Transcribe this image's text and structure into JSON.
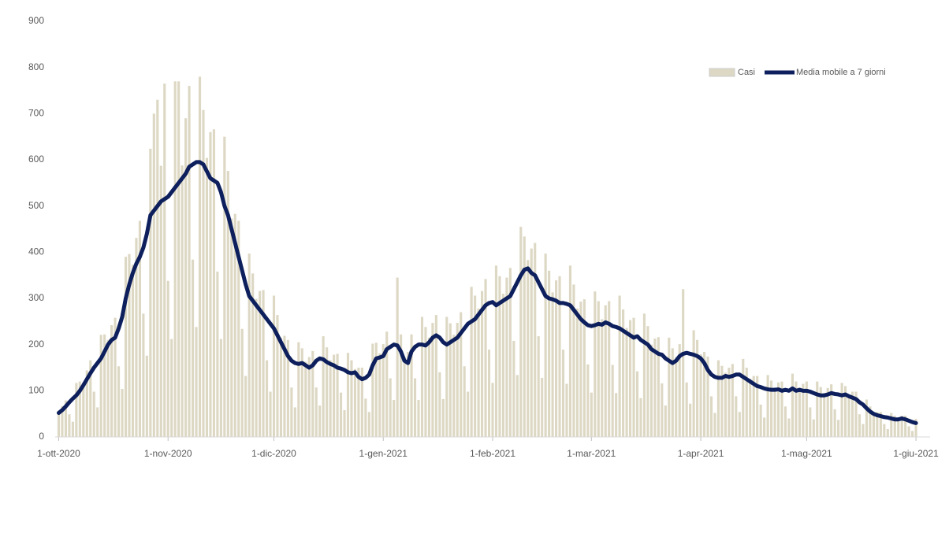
{
  "chart_data": {
    "type": "bar",
    "x": [
      0,
      1,
      2,
      3,
      4,
      5,
      6,
      7,
      8,
      9,
      10,
      11,
      12,
      13,
      14,
      15,
      16,
      17,
      18,
      19,
      20,
      21,
      22,
      23,
      24,
      25,
      26,
      27,
      28,
      29,
      30,
      31,
      32,
      33,
      34,
      35,
      36,
      37,
      38,
      39,
      40,
      41,
      42,
      43,
      44,
      45,
      46,
      47,
      48,
      49,
      50,
      51,
      52,
      53,
      54,
      55,
      56,
      57,
      58,
      59,
      60,
      61,
      62,
      63,
      64,
      65,
      66,
      67,
      68,
      69,
      70,
      71,
      72,
      73,
      74,
      75,
      76,
      77,
      78,
      79,
      80,
      81,
      82,
      83,
      84,
      85,
      86,
      87,
      88,
      89,
      90,
      91,
      92,
      93,
      94,
      95,
      96,
      97,
      98,
      99,
      100,
      101,
      102,
      103,
      104,
      105,
      106,
      107,
      108,
      109,
      110,
      111,
      112,
      113,
      114,
      115,
      116,
      117,
      118,
      119,
      120,
      121,
      122,
      123,
      124,
      125,
      126,
      127,
      128,
      129,
      130,
      131,
      132,
      133,
      134,
      135,
      136,
      137,
      138,
      139,
      140,
      141,
      142,
      143,
      144,
      145,
      146,
      147,
      148,
      149,
      150,
      151,
      152,
      153,
      154,
      155,
      156,
      157,
      158,
      159,
      160,
      161,
      162,
      163,
      164,
      165,
      166,
      167,
      168,
      169,
      170,
      171,
      172,
      173,
      174,
      175,
      176,
      177,
      178,
      179,
      180,
      181,
      182,
      183,
      184,
      185,
      186,
      187,
      188,
      189,
      190,
      191,
      192,
      193,
      194,
      195,
      196,
      197,
      198,
      199,
      200,
      201,
      202,
      203,
      204,
      205,
      206,
      207,
      208,
      209,
      210,
      211,
      212,
      213,
      214,
      215,
      216,
      217,
      218,
      219,
      220,
      221,
      222,
      223,
      224,
      225,
      226,
      227,
      228,
      229,
      230,
      231,
      232,
      233,
      234,
      235,
      236,
      237,
      238,
      239,
      240,
      241,
      242,
      243
    ],
    "series": [
      {
        "name": "Casi",
        "type": "bar",
        "color": "#ddd8c4",
        "values": [
          55,
          67,
          79,
          49,
          33,
          117,
          120,
          118,
          144,
          166,
          98,
          64,
          221,
          222,
          210,
          242,
          258,
          153,
          104,
          390,
          396,
          373,
          431,
          468,
          267,
          176,
          624,
          700,
          730,
          587,
          765,
          338,
          212,
          770,
          770,
          588,
          690,
          760,
          384,
          238,
          780,
          708,
          604,
          660,
          666,
          358,
          212,
          650,
          576,
          473,
          483,
          468,
          234,
          132,
          397,
          354,
          299,
          316,
          318,
          166,
          98,
          306,
          264,
          215,
          219,
          210,
          107,
          64,
          205,
          192,
          163,
          173,
          186,
          107,
          68,
          218,
          194,
          166,
          178,
          180,
          96,
          58,
          182,
          166,
          147,
          150,
          150,
          83,
          54,
          202,
          204,
          181,
          201,
          228,
          127,
          80,
          345,
          222,
          173,
          184,
          222,
          127,
          80,
          260,
          238,
          215,
          247,
          264,
          140,
          82,
          260,
          246,
          221,
          247,
          270,
          153,
          98,
          325,
          306,
          278,
          316,
          342,
          189,
          117,
          371,
          348,
          310,
          345,
          366,
          208,
          134,
          455,
          434,
          383,
          408,
          420,
          218,
          128,
          397,
          360,
          313,
          339,
          348,
          189,
          115,
          371,
          330,
          278,
          293,
          298,
          157,
          96,
          315,
          294,
          255,
          285,
          294,
          156,
          95,
          306,
          276,
          236,
          253,
          258,
          142,
          84,
          267,
          240,
          200,
          213,
          216,
          116,
          68,
          215,
          192,
          173,
          201,
          320,
          118,
          72,
          231,
          210,
          179,
          184,
          174,
          88,
          52,
          166,
          154,
          139,
          150,
          158,
          88,
          54,
          169,
          150,
          126,
          132,
          132,
          70,
          42,
          134,
          122,
          107,
          118,
          120,
          66,
          40,
          137,
          120,
          107,
          115,
          120,
          64,
          38,
          120,
          108,
          95,
          106,
          114,
          60,
          37,
          117,
          110,
          92,
          98,
          98,
          49,
          28,
          81,
          66,
          53,
          54,
          54,
          28,
          17,
          52,
          46,
          40,
          46,
          46,
          23,
          13,
          39
        ]
      },
      {
        "name": "Media mobile a 7 giorni",
        "type": "line",
        "color": "#0d1f5c",
        "values": [
          52,
          58,
          66,
          75,
          83,
          90,
          100,
          112,
          125,
          138,
          150,
          160,
          170,
          185,
          200,
          210,
          215,
          235,
          260,
          300,
          330,
          355,
          375,
          390,
          410,
          440,
          480,
          490,
          500,
          510,
          515,
          520,
          530,
          540,
          550,
          560,
          570,
          585,
          590,
          595,
          595,
          590,
          575,
          560,
          555,
          550,
          530,
          500,
          480,
          450,
          420,
          390,
          360,
          330,
          305,
          295,
          285,
          275,
          265,
          255,
          245,
          235,
          220,
          205,
          190,
          175,
          165,
          160,
          158,
          160,
          155,
          150,
          155,
          165,
          170,
          168,
          162,
          158,
          155,
          150,
          148,
          145,
          140,
          138,
          140,
          130,
          125,
          128,
          135,
          155,
          170,
          172,
          175,
          190,
          195,
          200,
          198,
          185,
          165,
          160,
          185,
          195,
          200,
          200,
          198,
          205,
          215,
          220,
          215,
          205,
          200,
          205,
          210,
          215,
          225,
          235,
          245,
          250,
          255,
          265,
          275,
          285,
          290,
          292,
          285,
          290,
          295,
          300,
          305,
          320,
          335,
          350,
          362,
          365,
          355,
          350,
          335,
          320,
          305,
          300,
          298,
          295,
          290,
          290,
          288,
          285,
          275,
          265,
          255,
          248,
          242,
          240,
          242,
          245,
          243,
          248,
          245,
          240,
          238,
          235,
          230,
          225,
          220,
          215,
          218,
          210,
          205,
          200,
          190,
          185,
          180,
          178,
          170,
          165,
          160,
          165,
          175,
          180,
          182,
          180,
          178,
          175,
          170,
          160,
          145,
          135,
          130,
          128,
          128,
          132,
          130,
          132,
          135,
          135,
          130,
          125,
          120,
          115,
          110,
          108,
          105,
          103,
          102,
          102,
          103,
          100,
          102,
          100,
          105,
          100,
          102,
          100,
          100,
          98,
          95,
          92,
          90,
          90,
          92,
          95,
          93,
          92,
          90,
          92,
          88,
          85,
          82,
          75,
          70,
          62,
          55,
          50,
          47,
          45,
          43,
          42,
          40,
          38,
          38,
          40,
          38,
          35,
          32,
          30
        ]
      }
    ],
    "xlim": [
      -1,
      247
    ],
    "xticks": [
      {
        "value": 0,
        "label": "1-ott-2020"
      },
      {
        "value": 31,
        "label": "1-nov-2020"
      },
      {
        "value": 61,
        "label": "1-dic-2020"
      },
      {
        "value": 92,
        "label": "1-gen-2021"
      },
      {
        "value": 123,
        "label": "1-feb-2021"
      },
      {
        "value": 151,
        "label": "1-mar-2021"
      },
      {
        "value": 182,
        "label": "1-apr-2021"
      },
      {
        "value": 212,
        "label": "1-mag-2021"
      },
      {
        "value": 243,
        "label": "1-giu-2021"
      }
    ],
    "ylim": [
      0,
      900
    ],
    "yticks": [
      0,
      100,
      200,
      300,
      400,
      500,
      600,
      700,
      800,
      900
    ],
    "grid": false,
    "legend": "top-right"
  }
}
